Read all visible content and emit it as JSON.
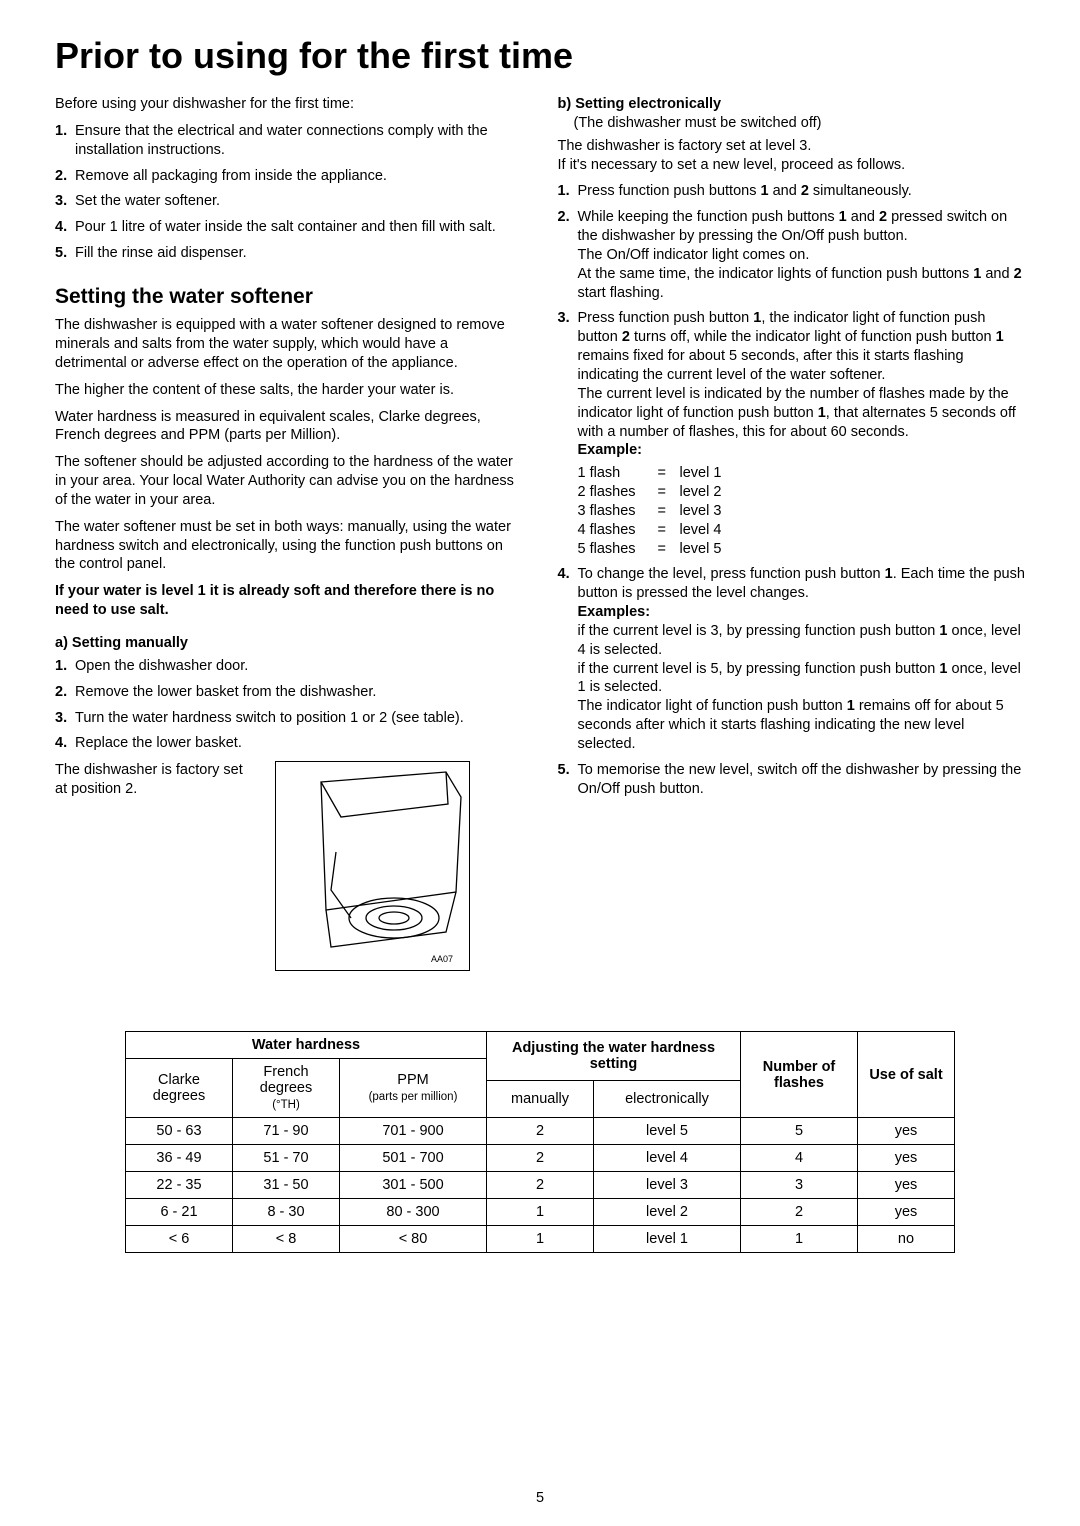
{
  "h1": "Prior to using for the first time",
  "intro": "Before using your dishwasher for the first time:",
  "steps0": [
    "Ensure that the electrical and water connections comply with the installation instructions.",
    "Remove all packaging from inside the appliance.",
    "Set the water softener.",
    "Pour 1 litre of water inside the salt container and then fill with salt.",
    "Fill the rinse aid dispenser."
  ],
  "h2": "Setting the water softener",
  "softener_p": [
    "The dishwasher is equipped with a water softener designed to remove minerals and salts from the water supply, which would have a detrimental or adverse effect on the operation of the appliance.",
    "The higher the content of these salts, the harder your water is.",
    "Water hardness is measured in equivalent scales, Clarke degrees, French degrees and PPM (parts per Million).",
    "The softener should be adjusted according to the hardness of the water in your area. Your local Water Authority can advise you on the hardness of the water in your area.",
    "The water softener must be set in both ways: manually, using the water hardness switch and electronically, using the function push buttons on the control panel."
  ],
  "softener_bold": "If your water is level 1 it is already soft and therefore there is no need to use salt.",
  "a_head": "a) Setting manually",
  "a_steps": [
    "Open the dishwasher door.",
    "Remove the lower basket from the dishwasher.",
    "Turn the water hardness switch to position 1 or 2 (see table).",
    "Replace the lower basket."
  ],
  "a_factory": "The dishwasher is factory set at position 2.",
  "diagram_label": "AA07",
  "b_head": "b) Setting electronically",
  "b_sub": "(The dishwasher must be switched off)",
  "b_factory": "The dishwasher is factory set at level 3.\nIf it's necessary to set a new level, proceed as follows.",
  "b1": "Press function push buttons ",
  "b1_bold1": "1",
  "b1_mid": " and ",
  "b1_bold2": "2",
  "b1_end": " simultaneously.",
  "b2a": "While keeping the function push buttons ",
  "b2b": " and ",
  "b2c": " pressed switch on the dishwasher by pressing the On/Off push button.",
  "b2d": "The On/Off indicator light comes on.",
  "b2e": "At the same time, the indicator lights of function push buttons ",
  "b2f": " start flashing.",
  "b3a": "Press function push button ",
  "b3b": ", the indicator light of function push button ",
  "b3c": " turns off, while the indicator light of function push button ",
  "b3d": " remains fixed for about 5 seconds, after this it starts flashing indicating the current level of the water softener.",
  "b3e": "The current level is indicated by the number of flashes made by the indicator light of function push button ",
  "b3f": ", that alternates 5 seconds off with a number of flashes, this for about 60 seconds.",
  "example": "Example:",
  "flashes": [
    [
      "1 flash",
      "=",
      "level 1"
    ],
    [
      "2 flashes",
      "=",
      "level 2"
    ],
    [
      "3 flashes",
      "=",
      "level 3"
    ],
    [
      "4 flashes",
      "=",
      "level 4"
    ],
    [
      "5 flashes",
      "=",
      "level 5"
    ]
  ],
  "b4a": "To change the level, press function push button ",
  "b4b": ". Each time the push button is pressed the level changes.",
  "examples": "Examples:",
  "ex1a": "if the current level is 3, by pressing function push button ",
  "ex1b": " once, level 4 is selected.",
  "ex2a": "if the current level is 5, by pressing function push button ",
  "ex2b": " once, level 1 is selected.",
  "b4c": "The indicator light of function push button ",
  "b4d": " remains off for about 5 seconds after which it starts flashing indicating the new level selected.",
  "b5": "To memorise the new level, switch off the dishwasher by pressing the On/Off push button.",
  "one": "1",
  "two": "2",
  "table": {
    "h_water": "Water hardness",
    "h_clarke": "Clarke degrees",
    "h_french": "French degrees",
    "h_french_sub": "(°TH)",
    "h_ppm": "PPM",
    "h_ppm_sub": "(parts per million)",
    "h_adjust": "Adjusting the water hardness setting",
    "h_man": "manually",
    "h_elec": "electronically",
    "h_num": "Number of flashes",
    "h_salt": "Use of salt",
    "rows": [
      [
        "50 - 63",
        "71 - 90",
        "701 - 900",
        "2",
        "level 5",
        "5",
        "yes"
      ],
      [
        "36 - 49",
        "51 - 70",
        "501 - 700",
        "2",
        "level 4",
        "4",
        "yes"
      ],
      [
        "22 - 35",
        "31 - 50",
        "301 - 500",
        "2",
        "level 3",
        "3",
        "yes"
      ],
      [
        "6 - 21",
        "8 - 30",
        "80 - 300",
        "1",
        "level 2",
        "2",
        "yes"
      ],
      [
        "< 6",
        "< 8",
        "< 80",
        "1",
        "level 1",
        "1",
        "no"
      ]
    ],
    "col_widths": [
      "90px",
      "90px",
      "130px",
      "90px",
      "130px",
      "100px",
      "80px"
    ]
  },
  "page_num": "5"
}
